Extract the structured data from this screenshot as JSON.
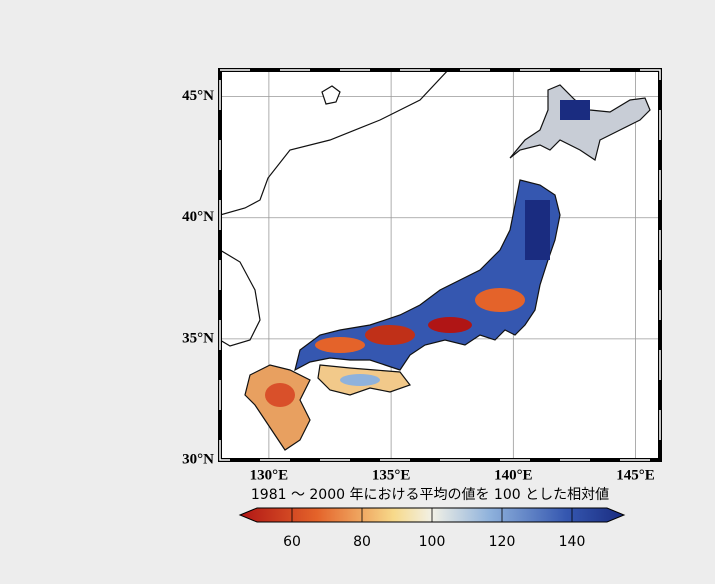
{
  "map": {
    "xlim": [
      128,
      146
    ],
    "ylim": [
      30,
      46.1
    ],
    "grid": true,
    "lon_ticks": [
      {
        "value": 130,
        "label": "130°E"
      },
      {
        "value": 135,
        "label": "135°E"
      },
      {
        "value": 140,
        "label": "140°E"
      },
      {
        "value": 145,
        "label": "145°E"
      }
    ],
    "lat_ticks": [
      {
        "value": 30,
        "label": "30°N"
      },
      {
        "value": 35,
        "label": "35°N"
      },
      {
        "value": 40,
        "label": "40°N"
      },
      {
        "value": 45,
        "label": "45°N"
      }
    ],
    "colorbar": {
      "title": "1981 ～ 2000 年における平均の値を 100 とした相対値",
      "lim": [
        50,
        150
      ],
      "ticks": [
        60,
        80,
        100,
        120,
        140
      ]
    }
  }
}
